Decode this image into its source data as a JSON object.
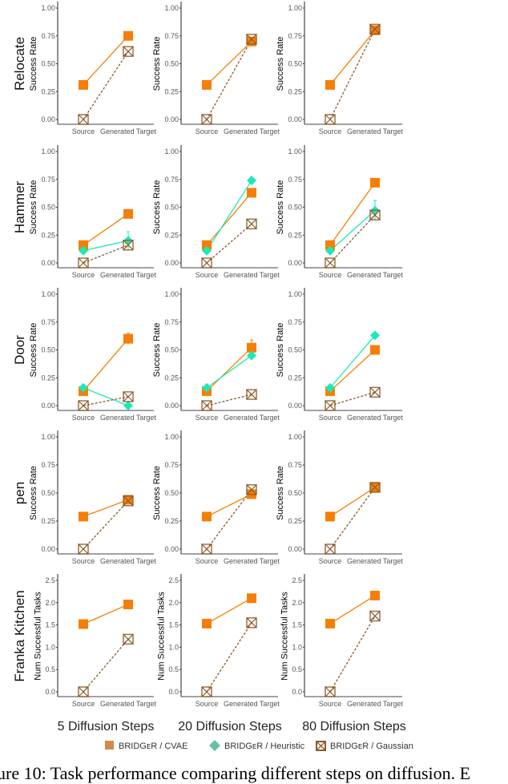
{
  "chart_data": {
    "type": "line",
    "layout": "grid 5 rows x 3 columns",
    "categories": [
      "Source",
      "Generated Target"
    ],
    "columns": [
      "5 Diffusion Steps",
      "20 Diffusion Steps",
      "80 Diffusion Steps"
    ],
    "colors": {
      "BRIDGeR / CVAE": "#F57F05",
      "BRIDGeR / Heuristic": "#1DE9B6",
      "BRIDGeR / Gaussian": "#8B5A2B"
    },
    "legend": {
      "placement": "bottom",
      "entries": [
        {
          "label": "BRIDGᴇR / CVAE",
          "marker": "square",
          "color": "#D2894B"
        },
        {
          "label": "BRIDGᴇR / Heuristic",
          "marker": "diamond",
          "color": "#66C2A5"
        },
        {
          "label": "BRIDGᴇR / Gaussian",
          "marker": "crossed-square",
          "color": "#8B5A2B"
        }
      ]
    },
    "rows": [
      {
        "task": "Relocate",
        "ylabel": "Success Rate",
        "ylim": [
          0,
          1
        ],
        "yticks": [
          "0.00",
          "0.25",
          "0.50",
          "0.75",
          "1.00"
        ],
        "ytick_values": [
          0,
          0.25,
          0.5,
          0.75,
          1
        ],
        "panels": [
          {
            "CVAE": [
              0.31,
              0.75
            ],
            "Gaussian": [
              0,
              0.61
            ]
          },
          {
            "CVAE": [
              0.31,
              0.7
            ],
            "Gaussian": [
              0,
              0.72
            ]
          },
          {
            "CVAE": [
              0.31,
              0.8
            ],
            "Gaussian": [
              0,
              0.81
            ]
          }
        ]
      },
      {
        "task": "Hammer",
        "ylabel": "Success Rate",
        "ylim": [
          0,
          1
        ],
        "yticks": [
          "0.00",
          "0.25",
          "0.50",
          "0.75",
          "1.00"
        ],
        "ytick_values": [
          0,
          0.25,
          0.5,
          0.75,
          1
        ],
        "panels": [
          {
            "CVAE": [
              0.16,
              0.44
            ],
            "Heuristic": [
              0.11,
              0.2
            ],
            "Heuristic_err_top": 0.28,
            "Gaussian": [
              0,
              0.16
            ]
          },
          {
            "CVAE": [
              0.16,
              0.63
            ],
            "Heuristic": [
              0.11,
              0.74
            ],
            "Gaussian": [
              0,
              0.35
            ]
          },
          {
            "CVAE": [
              0.16,
              0.72
            ],
            "Heuristic": [
              0.11,
              0.47
            ],
            "Heuristic_err_top": 0.56,
            "Gaussian": [
              0,
              0.43
            ]
          }
        ]
      },
      {
        "task": "Door",
        "ylabel": "Success Rate",
        "ylim": [
          0,
          1
        ],
        "yticks": [
          "0.00",
          "0.25",
          "0.50",
          "0.75",
          "1.00"
        ],
        "ytick_values": [
          0,
          0.25,
          0.5,
          0.75,
          1
        ],
        "panels": [
          {
            "CVAE": [
              0.13,
              0.6
            ],
            "CVAE_err_top": 0.65,
            "Heuristic": [
              0.16,
              0.0
            ],
            "Gaussian": [
              0,
              0.08
            ]
          },
          {
            "CVAE": [
              0.13,
              0.52
            ],
            "CVAE_err_top": 0.59,
            "Heuristic": [
              0.16,
              0.45
            ],
            "Gaussian": [
              0,
              0.1
            ]
          },
          {
            "CVAE": [
              0.13,
              0.5
            ],
            "Heuristic": [
              0.16,
              0.63
            ],
            "Gaussian": [
              0,
              0.12
            ]
          }
        ]
      },
      {
        "task": "pen",
        "ylabel": "Success Rate",
        "ylim": [
          0,
          1
        ],
        "yticks": [
          "0.00",
          "0.25",
          "0.50",
          "0.75",
          "1.00"
        ],
        "ytick_values": [
          0,
          0.25,
          0.5,
          0.75,
          1
        ],
        "panels": [
          {
            "CVAE": [
              0.29,
              0.44
            ],
            "Gaussian": [
              0,
              0.43
            ]
          },
          {
            "CVAE": [
              0.29,
              0.49
            ],
            "Gaussian": [
              0,
              0.53
            ]
          },
          {
            "CVAE": [
              0.29,
              0.55
            ],
            "Gaussian": [
              0,
              0.55
            ]
          }
        ]
      },
      {
        "task": "Franka Kitchen",
        "ylabel": "Num Successful Tasks",
        "ylim": [
          0,
          2.5
        ],
        "yticks": [
          "0.0",
          "0.5",
          "1.0",
          "1.5",
          "2.0",
          "2.5"
        ],
        "ytick_values": [
          0,
          0.5,
          1,
          1.5,
          2,
          2.5
        ],
        "panels": [
          {
            "CVAE": [
              1.52,
              1.96
            ],
            "Gaussian": [
              0,
              1.18
            ]
          },
          {
            "CVAE": [
              1.53,
              2.1
            ],
            "Gaussian": [
              0,
              1.55
            ]
          },
          {
            "CVAE": [
              1.53,
              2.16
            ],
            "Gaussian": [
              0,
              1.7
            ]
          }
        ]
      }
    ]
  },
  "caption": "ure 10: Task performance comparing different steps on diffusion. E"
}
